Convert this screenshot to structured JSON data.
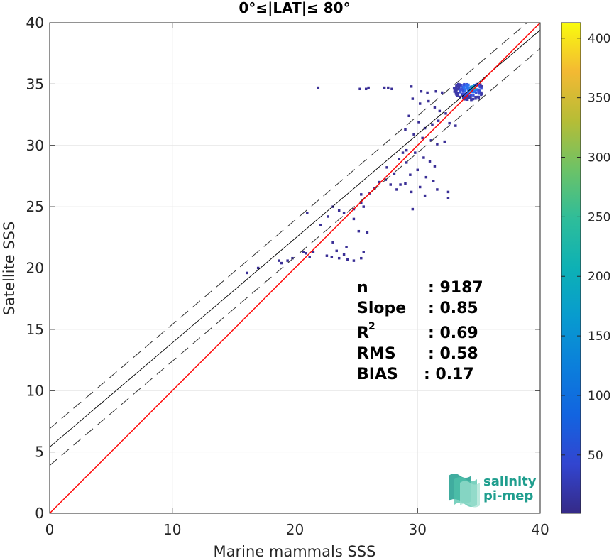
{
  "chart_data": {
    "type": "heatmap",
    "title": "0°≤|LAT|≤ 80°",
    "xlabel": "Marine mammals SSS",
    "ylabel": "Satellite SSS",
    "xlim": [
      0,
      40
    ],
    "ylim": [
      0,
      40
    ],
    "xticks": [
      "0",
      "10",
      "20",
      "30",
      "40"
    ],
    "yticks": [
      "0",
      "5",
      "10",
      "15",
      "20",
      "25",
      "30",
      "35",
      "40"
    ],
    "grid": true,
    "colorbar": {
      "min": 1,
      "max": 413,
      "ticks": [
        "50",
        "100",
        "150",
        "200",
        "250",
        "300",
        "350",
        "400"
      ],
      "tick_values": [
        50,
        100,
        150,
        200,
        250,
        300,
        350,
        400
      ],
      "colormap": "parula"
    },
    "reference_line": {
      "slope": 1,
      "intercept": 0,
      "color": "#ff0000"
    },
    "fit_line": {
      "slope": 0.85,
      "intercept": 5.4,
      "color": "#000000"
    },
    "fit_bounds": [
      {
        "slope": 0.85,
        "intercept": 6.9
      },
      {
        "slope": 0.85,
        "intercept": 3.9
      }
    ],
    "stats": {
      "n_label": "n",
      "n_value": ": 9187",
      "slope_label": "Slope",
      "slope_value": ": 0.85",
      "r2_label": "R",
      "r2_sup": "2",
      "r2_value": ": 0.69",
      "rms_label": "RMS",
      "rms_value": ": 0.58",
      "bias_label": "BIAS",
      "bias_value": ": 0.17"
    },
    "core_cluster": {
      "x_range": [
        32.5,
        35.3
      ],
      "y_range": [
        33.2,
        35.0
      ],
      "peak": [
        34.3,
        34.6
      ]
    },
    "sparse_points": [
      [
        21.9,
        34.7
      ],
      [
        25.3,
        34.6
      ],
      [
        25.8,
        34.6
      ],
      [
        26.0,
        34.7
      ],
      [
        27.3,
        34.7
      ],
      [
        27.6,
        34.7
      ],
      [
        27.9,
        34.6
      ],
      [
        29.5,
        34.8
      ],
      [
        30.3,
        34.4
      ],
      [
        30.8,
        34.3
      ],
      [
        31.5,
        34.4
      ],
      [
        32.0,
        34.3
      ],
      [
        29.6,
        33.8
      ],
      [
        30.2,
        33.4
      ],
      [
        30.9,
        33.6
      ],
      [
        31.4,
        33.1
      ],
      [
        31.8,
        32.8
      ],
      [
        32.3,
        32.6
      ],
      [
        29.3,
        32.4
      ],
      [
        30.1,
        31.9
      ],
      [
        30.6,
        31.4
      ],
      [
        31.2,
        31.7
      ],
      [
        31.7,
        32.0
      ],
      [
        32.6,
        31.8
      ],
      [
        33.1,
        31.6
      ],
      [
        29.0,
        31.3
      ],
      [
        29.7,
        30.9
      ],
      [
        30.4,
        30.6
      ],
      [
        31.1,
        30.4
      ],
      [
        31.6,
        30.1
      ],
      [
        32.2,
        30.3
      ],
      [
        29.1,
        29.6
      ],
      [
        29.8,
        29.4
      ],
      [
        30.5,
        29.0
      ],
      [
        31.0,
        28.7
      ],
      [
        31.4,
        28.3
      ],
      [
        30.0,
        28.0
      ],
      [
        29.4,
        27.6
      ],
      [
        30.7,
        27.4
      ],
      [
        31.3,
        27.1
      ],
      [
        29.0,
        26.9
      ],
      [
        30.2,
        26.6
      ],
      [
        29.5,
        26.2
      ],
      [
        31.6,
        26.4
      ],
      [
        32.5,
        26.2
      ],
      [
        30.6,
        25.9
      ],
      [
        32.5,
        25.7
      ],
      [
        28.6,
        26.8
      ],
      [
        28.3,
        26.4
      ],
      [
        27.8,
        26.8
      ],
      [
        26.9,
        27.0
      ],
      [
        26.5,
        26.5
      ],
      [
        26.1,
        26.1
      ],
      [
        25.4,
        26.0
      ],
      [
        29.6,
        24.8
      ],
      [
        25.4,
        25.3
      ],
      [
        25.6,
        25.0
      ],
      [
        24.8,
        24.8
      ],
      [
        24.0,
        24.5
      ],
      [
        23.1,
        25.0
      ],
      [
        23.6,
        24.7
      ],
      [
        21.0,
        24.5
      ],
      [
        22.7,
        24.2
      ],
      [
        24.8,
        24.0
      ],
      [
        25.2,
        23.0
      ],
      [
        25.9,
        22.9
      ],
      [
        22.1,
        23.5
      ],
      [
        23.1,
        22.1
      ],
      [
        24.2,
        21.7
      ],
      [
        22.6,
        21.0
      ],
      [
        23.0,
        20.9
      ],
      [
        23.6,
        20.8
      ],
      [
        24.3,
        20.7
      ],
      [
        24.8,
        20.6
      ],
      [
        25.4,
        20.8
      ],
      [
        25.6,
        21.3
      ],
      [
        23.4,
        21.4
      ],
      [
        24.0,
        21.1
      ],
      [
        20.7,
        21.3
      ],
      [
        20.9,
        21.2
      ],
      [
        21.2,
        20.9
      ],
      [
        21.5,
        21.3
      ],
      [
        19.8,
        20.8
      ],
      [
        19.4,
        20.6
      ],
      [
        18.9,
        20.4
      ],
      [
        18.7,
        20.6
      ],
      [
        16.1,
        19.6
      ],
      [
        17.0,
        20.0
      ],
      [
        27.4,
        27.2
      ],
      [
        28.1,
        27.7
      ],
      [
        27.5,
        28.2
      ],
      [
        28.5,
        28.9
      ],
      [
        29.1,
        28.6
      ],
      [
        28.8,
        29.4
      ]
    ]
  }
}
